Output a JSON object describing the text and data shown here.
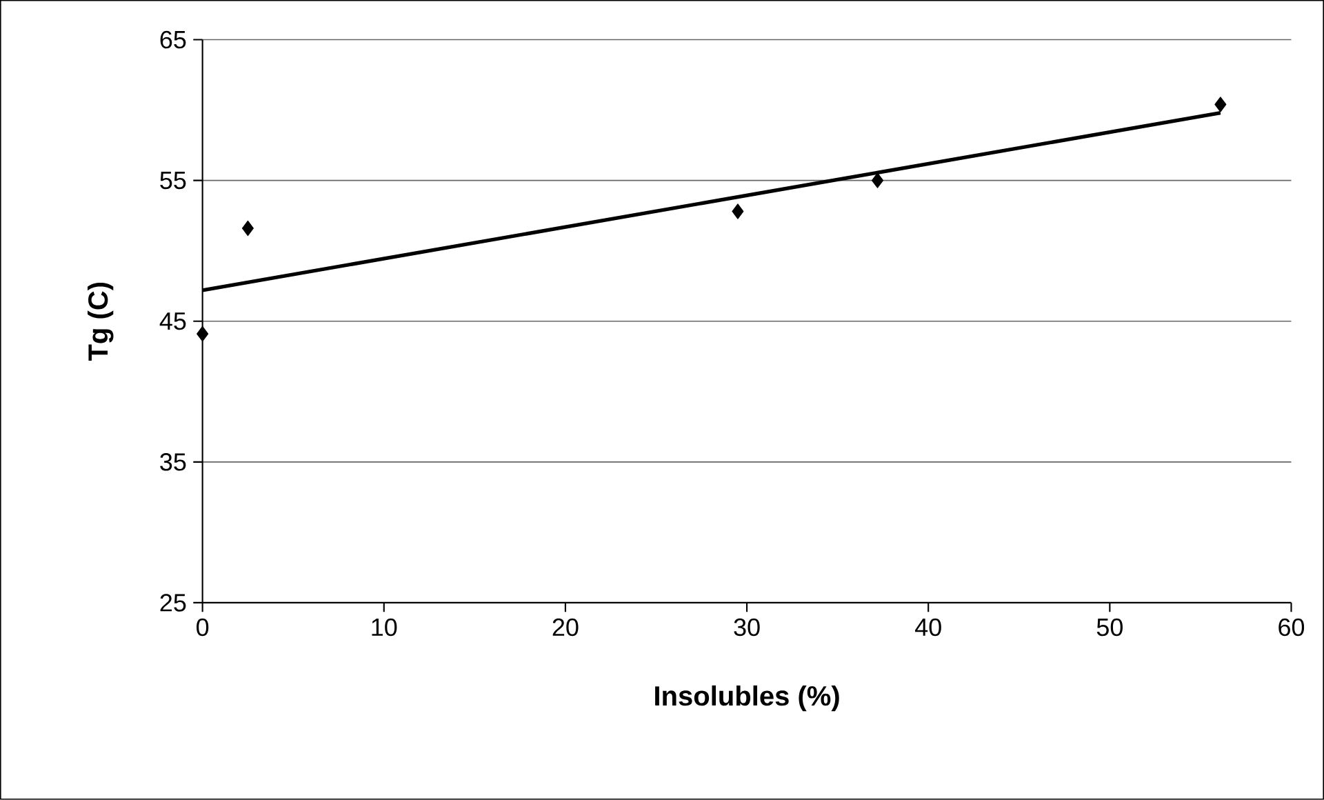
{
  "chart_data": {
    "type": "scatter",
    "xlabel": "Insolubles (%)",
    "ylabel": "Tg (C)",
    "xlim": [
      0,
      60
    ],
    "ylim": [
      25,
      65
    ],
    "xticks": [
      0,
      10,
      20,
      30,
      40,
      50,
      60
    ],
    "yticks": [
      25,
      35,
      45,
      55,
      65
    ],
    "grid": "y",
    "series": [
      {
        "color": "#000000",
        "marker": "diamond",
        "x": [
          0,
          2.5,
          29.5,
          37.2,
          56.1
        ],
        "values": [
          44.1,
          51.6,
          52.8,
          55.0,
          60.4
        ]
      },
      {
        "type": "line",
        "color": "#000000",
        "marker": "none",
        "line_style": "solid",
        "x": [
          0,
          56.1
        ],
        "values": [
          47.2,
          59.8
        ]
      }
    ]
  }
}
